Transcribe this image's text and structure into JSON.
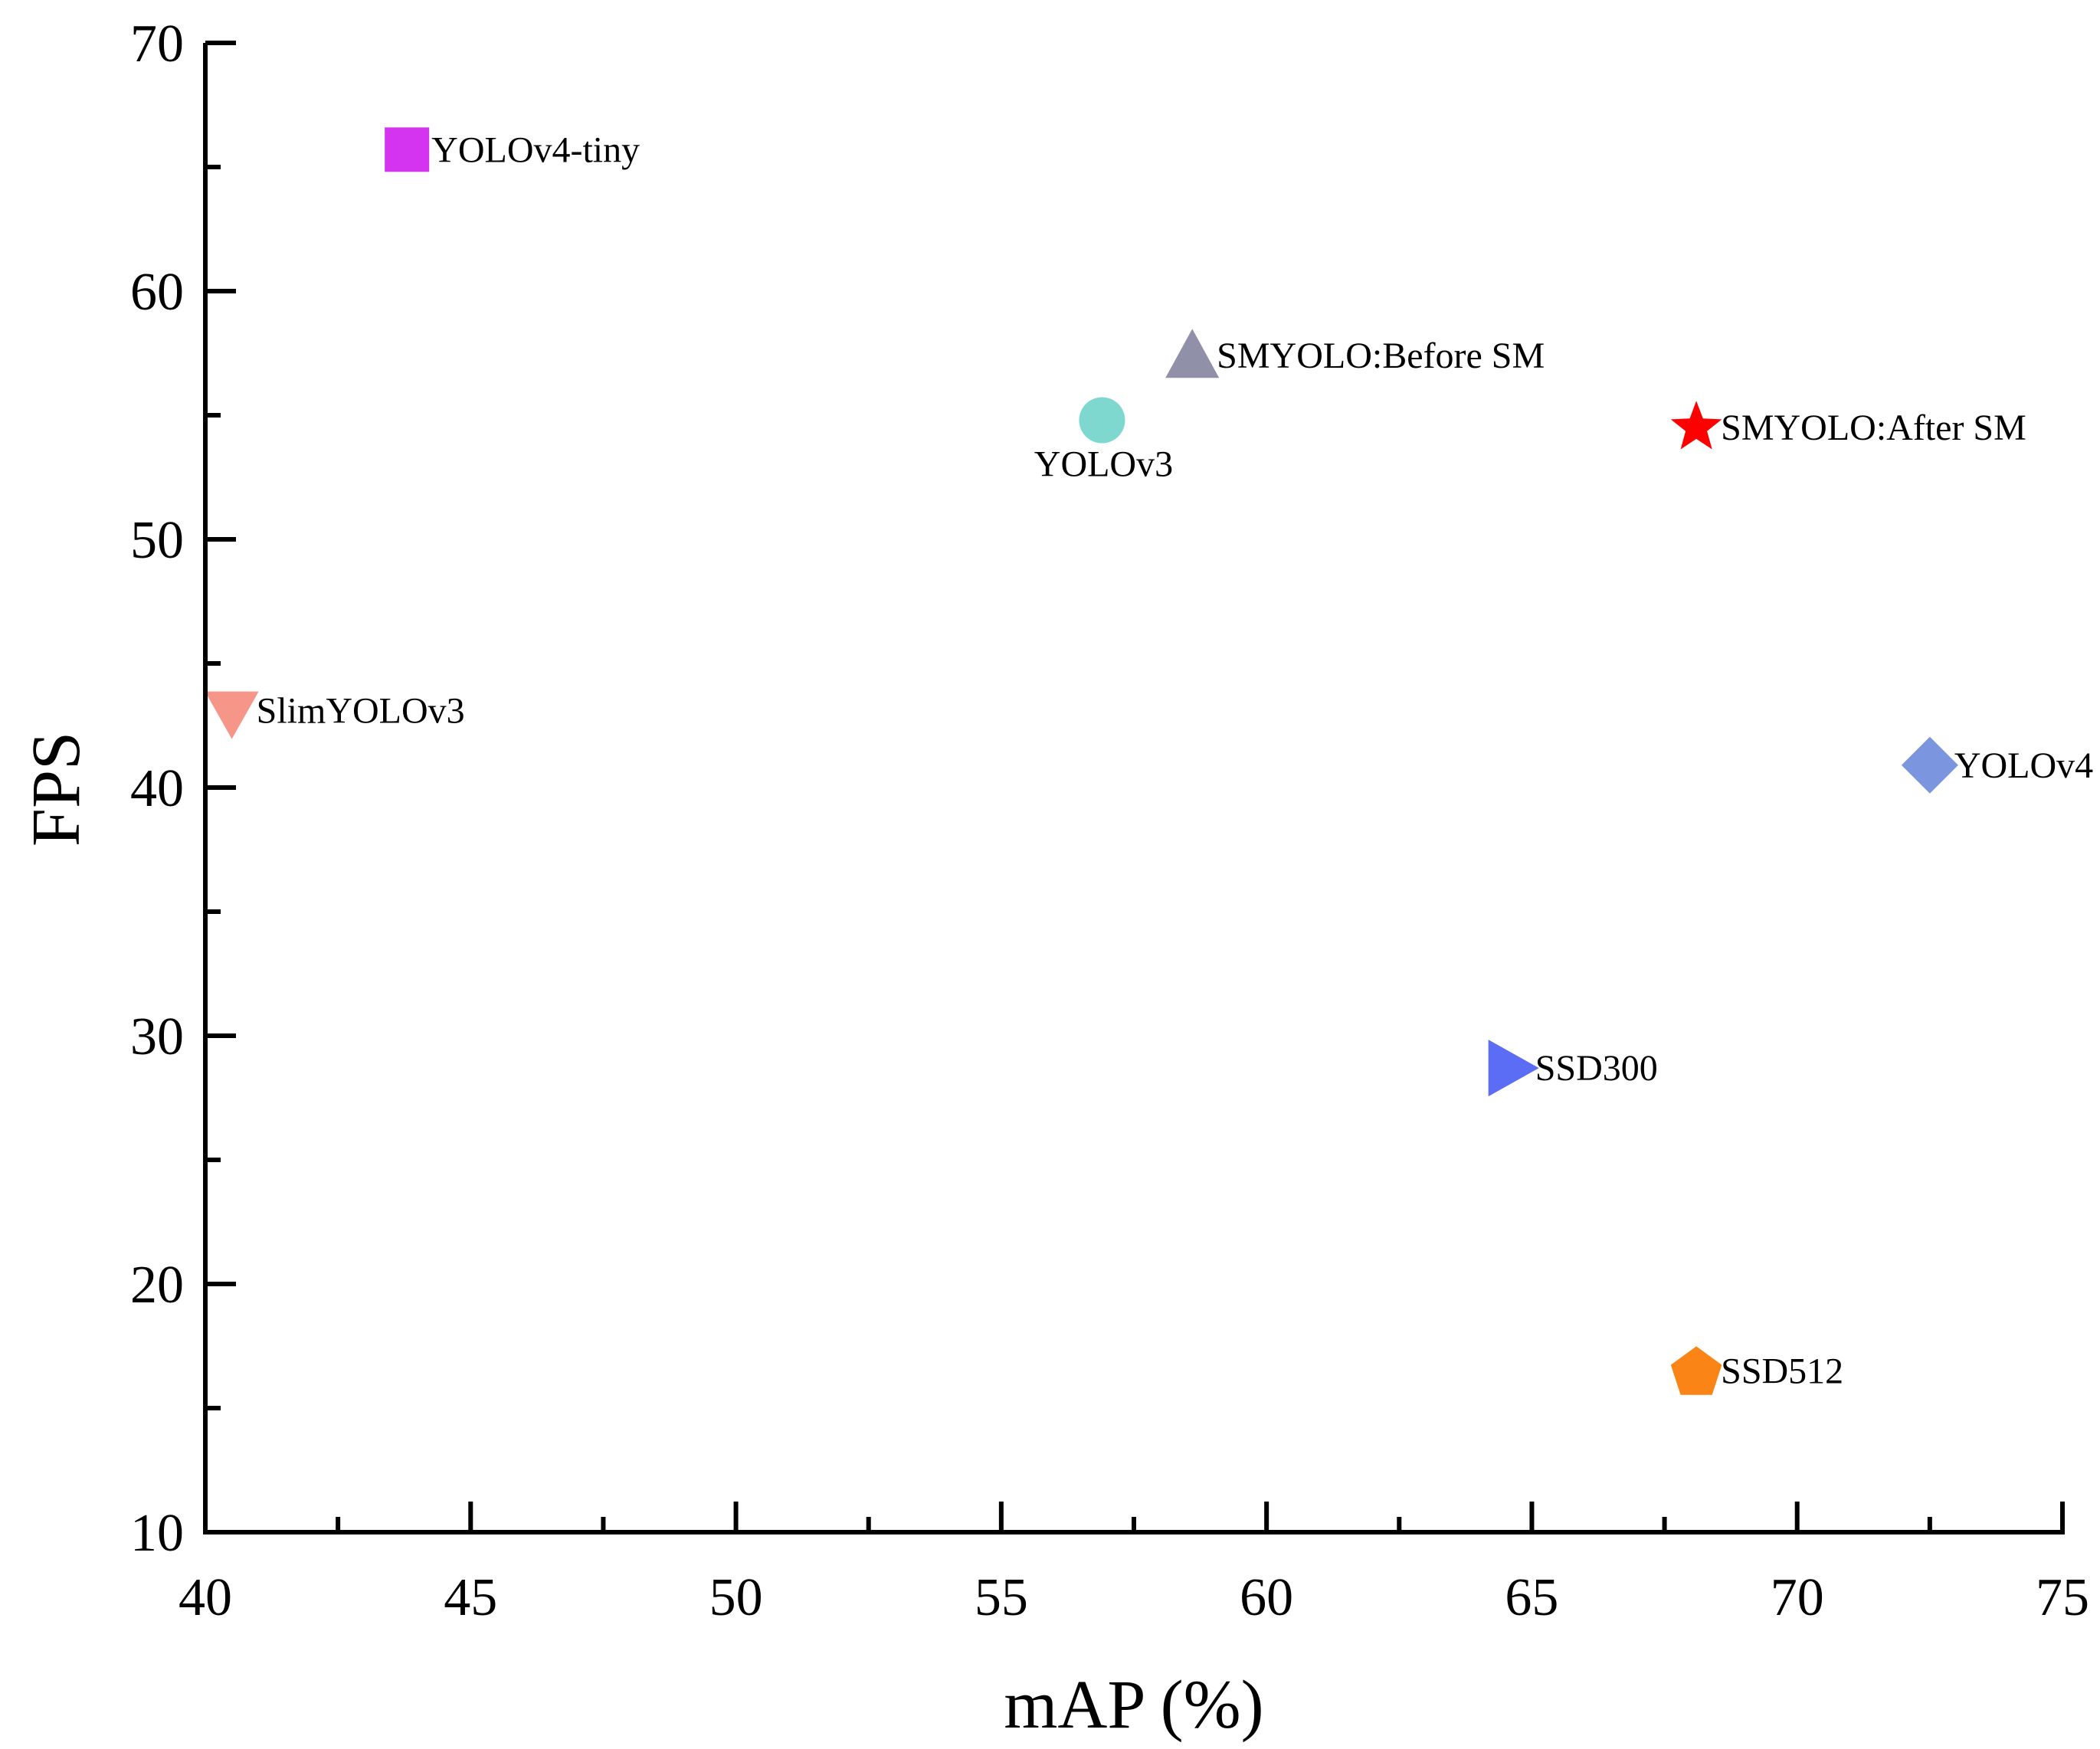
{
  "chart_data": {
    "type": "scatter",
    "title": "",
    "xlabel": "mAP (%)",
    "ylabel": "FPS",
    "xlim": [
      40,
      75
    ],
    "ylim": [
      10,
      70
    ],
    "xticks": [
      40,
      45,
      50,
      55,
      60,
      65,
      70,
      75
    ],
    "yticks": [
      10,
      20,
      30,
      40,
      50,
      60,
      70
    ],
    "x_minor_step": 2.5,
    "y_minor_step": 5,
    "grid": false,
    "points": [
      {
        "name": "YOLOv4-tiny",
        "x": 43.8,
        "y": 65.7,
        "marker": "square",
        "color": "#D433F0",
        "label_pos": "right"
      },
      {
        "name": "SMYOLO:Before SM",
        "x": 58.6,
        "y": 57.4,
        "marker": "triangle-up",
        "color": "#9090A8",
        "label_pos": "right"
      },
      {
        "name": "YOLOv3",
        "x": 56.9,
        "y": 54.8,
        "marker": "circle",
        "color": "#7ED8D0",
        "label_pos": "below"
      },
      {
        "name": "SMYOLO:After SM",
        "x": 68.1,
        "y": 54.5,
        "marker": "star",
        "color": "#FF0000",
        "label_pos": "right"
      },
      {
        "name": "SlimYOLOv3",
        "x": 40.5,
        "y": 43.1,
        "marker": "triangle-down",
        "color": "#F59688",
        "label_pos": "right"
      },
      {
        "name": "YOLOv4",
        "x": 72.5,
        "y": 40.9,
        "marker": "diamond",
        "color": "#7B96DE",
        "label_pos": "right"
      },
      {
        "name": "SSD300",
        "x": 64.6,
        "y": 28.7,
        "marker": "triangle-right",
        "color": "#5B6DF5",
        "label_pos": "right"
      },
      {
        "name": "SSD512",
        "x": 68.1,
        "y": 16.5,
        "marker": "pentagon",
        "color": "#FA8416",
        "label_pos": "right"
      }
    ]
  }
}
